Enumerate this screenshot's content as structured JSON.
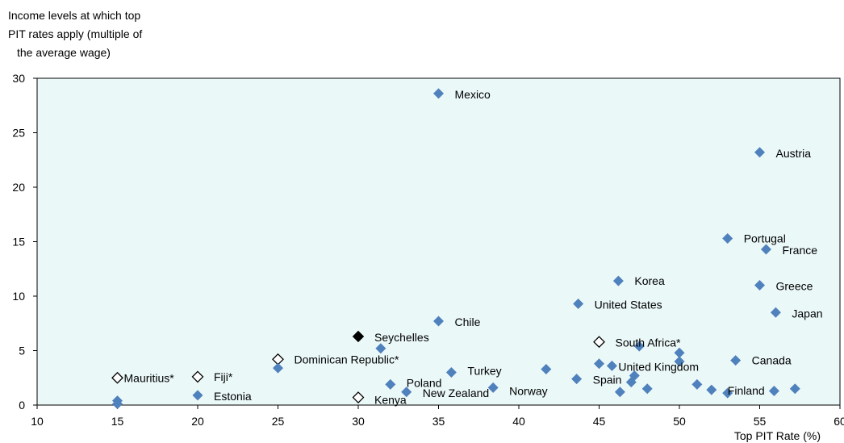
{
  "chart_data": {
    "type": "scatter",
    "ylabel_lines": [
      "Income levels at which top",
      "PIT rates apply (multiple of",
      "the average wage)"
    ],
    "xlabel": "Top PIT Rate (%)",
    "xlim": [
      10,
      60
    ],
    "ylim": [
      0,
      30
    ],
    "xticks": [
      10,
      15,
      20,
      25,
      30,
      35,
      40,
      45,
      50,
      55,
      60
    ],
    "yticks": [
      0,
      5,
      10,
      15,
      20,
      25,
      30
    ],
    "grid": false,
    "colors": {
      "plot_bg": "#EBF8F8",
      "oecd": "#4F81BD",
      "black": "#000000",
      "hollow": "#FFFFFF"
    },
    "points": [
      {
        "x": 35,
        "y": 28.6,
        "label": "Mexico",
        "style": "blue"
      },
      {
        "x": 55,
        "y": 23.2,
        "label": "Austria",
        "style": "blue"
      },
      {
        "x": 53,
        "y": 15.3,
        "label": "Portugal",
        "style": "blue"
      },
      {
        "x": 55.4,
        "y": 14.3,
        "label": "France",
        "style": "blue"
      },
      {
        "x": 46.2,
        "y": 11.4,
        "label": "Korea",
        "style": "blue"
      },
      {
        "x": 55,
        "y": 11.0,
        "label": "Greece",
        "style": "blue"
      },
      {
        "x": 43.7,
        "y": 9.3,
        "label": "United States",
        "style": "blue"
      },
      {
        "x": 56,
        "y": 8.5,
        "label": "Japan",
        "style": "blue"
      },
      {
        "x": 35,
        "y": 7.7,
        "label": "Chile",
        "style": "blue"
      },
      {
        "x": 30,
        "y": 6.3,
        "label": "Seychelles",
        "style": "black"
      },
      {
        "x": 45,
        "y": 5.8,
        "label": "South Africa*",
        "style": "hollow"
      },
      {
        "x": 47.5,
        "y": 5.4,
        "label": "",
        "style": "blue"
      },
      {
        "x": 31.4,
        "y": 5.2,
        "label": "",
        "style": "blue"
      },
      {
        "x": 50,
        "y": 4.8,
        "label": "",
        "style": "blue"
      },
      {
        "x": 25,
        "y": 4.2,
        "label": "Dominican Republic*",
        "style": "hollow"
      },
      {
        "x": 53.5,
        "y": 4.1,
        "label": "Canada",
        "style": "blue"
      },
      {
        "x": 50,
        "y": 4.0,
        "label": "",
        "style": "blue"
      },
      {
        "x": 45,
        "y": 3.8,
        "label": "",
        "style": "blue"
      },
      {
        "x": 45.8,
        "y": 3.6,
        "label": "United Kingdom",
        "style": "blue"
      },
      {
        "x": 25,
        "y": 3.4,
        "label": "",
        "style": "blue"
      },
      {
        "x": 41.7,
        "y": 3.3,
        "label": "",
        "style": "blue"
      },
      {
        "x": 35.8,
        "y": 3.0,
        "label": "Turkey",
        "style": "blue"
      },
      {
        "x": 47.2,
        "y": 2.7,
        "label": "",
        "style": "blue"
      },
      {
        "x": 20,
        "y": 2.6,
        "label": "Fiji*",
        "style": "hollow"
      },
      {
        "x": 15,
        "y": 2.5,
        "label": "Mauritius*",
        "style": "hollow"
      },
      {
        "x": 43.6,
        "y": 2.4,
        "label": "Spain",
        "style": "blue"
      },
      {
        "x": 47,
        "y": 2.1,
        "label": "",
        "style": "blue"
      },
      {
        "x": 51.1,
        "y": 1.9,
        "label": "",
        "style": "blue"
      },
      {
        "x": 32,
        "y": 1.9,
        "label": "Poland",
        "style": "blue"
      },
      {
        "x": 38.4,
        "y": 1.6,
        "label": "Norway",
        "style": "blue"
      },
      {
        "x": 48,
        "y": 1.5,
        "label": "",
        "style": "blue"
      },
      {
        "x": 57.2,
        "y": 1.5,
        "label": "",
        "style": "blue"
      },
      {
        "x": 52,
        "y": 1.4,
        "label": "Finland",
        "style": "blue"
      },
      {
        "x": 55.9,
        "y": 1.3,
        "label": "",
        "style": "blue"
      },
      {
        "x": 46.3,
        "y": 1.2,
        "label": "",
        "style": "blue"
      },
      {
        "x": 33,
        "y": 1.2,
        "label": "New Zealand",
        "style": "blue"
      },
      {
        "x": 53,
        "y": 1.1,
        "label": "",
        "style": "blue"
      },
      {
        "x": 20,
        "y": 0.9,
        "label": "Estonia",
        "style": "blue"
      },
      {
        "x": 30,
        "y": 0.7,
        "label": "Kenya",
        "style": "hollow"
      },
      {
        "x": 15,
        "y": 0.4,
        "label": "",
        "style": "blue"
      },
      {
        "x": 15,
        "y": 0.1,
        "label": "",
        "style": "blue"
      }
    ]
  }
}
